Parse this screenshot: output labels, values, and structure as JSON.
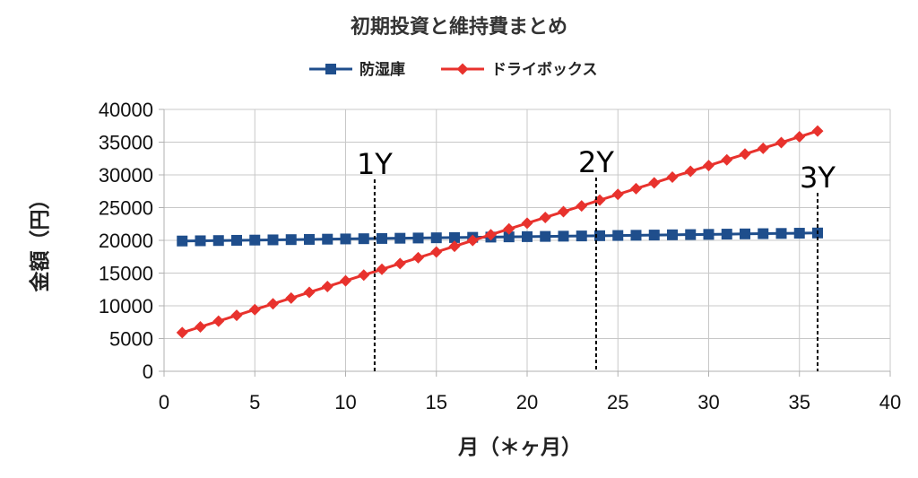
{
  "chart_data": {
    "type": "line",
    "title": "初期投資と維持費まとめ",
    "xlabel": "月（＊ヶ月）",
    "ylabel": "金額（円）",
    "xlim": [
      0,
      40
    ],
    "ylim": [
      0,
      40000
    ],
    "x_ticks": [
      "0",
      "5",
      "10",
      "15",
      "20",
      "25",
      "30",
      "35",
      "40"
    ],
    "y_ticks": [
      "0",
      "5000",
      "10000",
      "15000",
      "20000",
      "25000",
      "30000",
      "35000",
      "40000"
    ],
    "grid": true,
    "legend_position": "top",
    "x": [
      1,
      2,
      3,
      4,
      5,
      6,
      7,
      8,
      9,
      10,
      11,
      12,
      13,
      14,
      15,
      16,
      17,
      18,
      19,
      20,
      21,
      22,
      23,
      24,
      25,
      26,
      27,
      28,
      29,
      30,
      31,
      32,
      33,
      34,
      35,
      36
    ],
    "series": [
      {
        "name": "防湿庫",
        "color": "#1f4e8c",
        "marker": "square",
        "values": [
          19900,
          19935,
          19970,
          20005,
          20040,
          20075,
          20110,
          20145,
          20180,
          20215,
          20250,
          20285,
          20320,
          20355,
          20390,
          20425,
          20460,
          20495,
          20530,
          20565,
          20600,
          20635,
          20670,
          20705,
          20740,
          20775,
          20810,
          20845,
          20880,
          20915,
          20950,
          20985,
          21020,
          21055,
          21090,
          21125
        ]
      },
      {
        "name": "ドライボックス",
        "color": "#e8322d",
        "marker": "diamond",
        "values": [
          5900,
          6780,
          7660,
          8540,
          9420,
          10300,
          11180,
          12060,
          12940,
          13820,
          14700,
          15580,
          16460,
          17340,
          18220,
          19100,
          19980,
          20860,
          21740,
          22620,
          23500,
          24380,
          25260,
          26140,
          27020,
          27900,
          28780,
          29660,
          30540,
          31420,
          32300,
          33180,
          34060,
          34940,
          35820,
          36700
        ]
      }
    ],
    "annotations": [
      {
        "label": "1Y",
        "x": 11.6
      },
      {
        "label": "2Y",
        "x": 23.8
      },
      {
        "label": "3Y",
        "x": 36.0
      }
    ]
  }
}
